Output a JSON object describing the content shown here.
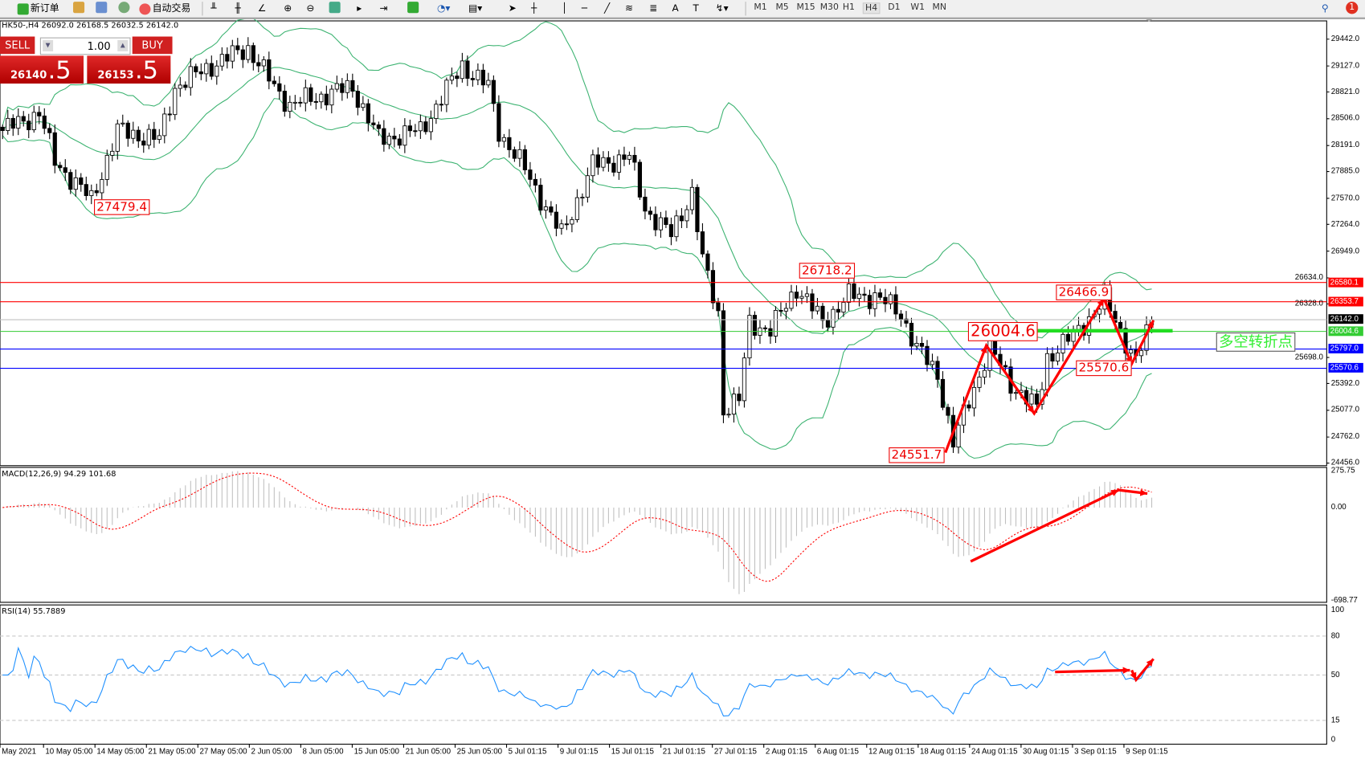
{
  "toolbar": {
    "new_order": "新订单",
    "auto_trading": "自动交易",
    "timeframes": [
      "M1",
      "M5",
      "M15",
      "M30",
      "H1",
      "H4",
      "D1",
      "W1",
      "MN"
    ],
    "active_timeframe": "H4",
    "notification_count": "1"
  },
  "chart_title": "HK50-,H4  26092.0 26168.5 26032.5 26142.0",
  "trade_panel": {
    "sell_label": "SELL",
    "buy_label": "BUY",
    "volume": "1.00",
    "sell_price_main": "26140",
    "sell_price_big": ".5",
    "buy_price_main": "26153",
    "buy_price_big": ".5"
  },
  "price_axis": [
    "29442.0",
    "29127.0",
    "28821.0",
    "28506.0",
    "28191.0",
    "27885.0",
    "27570.0",
    "27264.0",
    "26949.0",
    "26634.0",
    "26328.0",
    "25698.0",
    "25392.0",
    "25077.0",
    "24762.0",
    "24456.0"
  ],
  "price_range": [
    24456.0,
    29442.0
  ],
  "price_tags": [
    {
      "value": "26580.1",
      "color": "#ff0000"
    },
    {
      "value": "26353.7",
      "color": "#ff0000"
    },
    {
      "value": "26142.0",
      "color": "#000000"
    },
    {
      "value": "26004.6",
      "color": "#33cc33"
    },
    {
      "value": "25797.0",
      "color": "#0000ff"
    },
    {
      "value": "25570.6",
      "color": "#0000ff"
    }
  ],
  "annotations": {
    "low1": "27479.4",
    "high1": "26718.2",
    "high2": "26466.9",
    "pivot": "26004.6",
    "low2": "25570.6",
    "low3": "24551.7",
    "pivot_text": "多空转折点"
  },
  "macd": {
    "label": "MACD(12,26,9) 94.29 101.68",
    "axis": [
      "275.75",
      "0.00",
      "-698.77"
    ],
    "range": [
      -698.77,
      275.75
    ]
  },
  "rsi": {
    "label": "RSI(14) 55.7889",
    "axis": [
      "100",
      "80",
      "50",
      "15",
      "0"
    ]
  },
  "time_axis": [
    "May 2021",
    "10 May 05:00",
    "14 May 05:00",
    "21 May 05:00",
    "27 May 05:00",
    "2 Jun 05:00",
    "8 Jun 05:00",
    "15 Jun 05:00",
    "21 Jun 05:00",
    "25 Jun 05:00",
    "5 Jul 01:15",
    "9 Jul 01:15",
    "15 Jul 01:15",
    "21 Jul 01:15",
    "27 Jul 01:15",
    "2 Aug 01:15",
    "6 Aug 01:15",
    "12 Aug 01:15",
    "18 Aug 01:15",
    "24 Aug 01:15",
    "30 Aug 01:15",
    "3 Sep 01:15",
    "9 Sep 01:15"
  ],
  "chart_data": {
    "type": "candlestick",
    "symbol": "HK50-",
    "timeframe": "H4",
    "close_path": [
      [
        0,
        28367
      ],
      [
        7,
        28572
      ],
      [
        10,
        28009
      ],
      [
        17,
        27548
      ],
      [
        22,
        28367
      ],
      [
        30,
        28260
      ],
      [
        33,
        28879
      ],
      [
        40,
        29135
      ],
      [
        47,
        29340
      ],
      [
        52,
        28879
      ],
      [
        55,
        28674
      ],
      [
        67,
        28879
      ],
      [
        72,
        28264
      ],
      [
        80,
        28367
      ],
      [
        88,
        29135
      ],
      [
        93,
        28879
      ],
      [
        95,
        28367
      ],
      [
        100,
        27906
      ],
      [
        107,
        27138
      ],
      [
        113,
        27958
      ],
      [
        120,
        28060
      ],
      [
        123,
        27446
      ],
      [
        128,
        27138
      ],
      [
        132,
        27650
      ],
      [
        134,
        26831
      ],
      [
        137,
        26217
      ],
      [
        138,
        25090
      ],
      [
        141,
        25192
      ],
      [
        143,
        26114
      ],
      [
        147,
        26012
      ],
      [
        152,
        26524
      ],
      [
        157,
        26114
      ],
      [
        162,
        26421
      ],
      [
        167,
        26421
      ],
      [
        172,
        26217
      ],
      [
        175,
        25807
      ],
      [
        179,
        25500
      ],
      [
        182,
        24681
      ],
      [
        185,
        25192
      ],
      [
        189,
        25807
      ],
      [
        193,
        25397
      ],
      [
        198,
        25090
      ],
      [
        200,
        25704
      ],
      [
        205,
        25960
      ],
      [
        211,
        26371
      ],
      [
        217,
        25653
      ],
      [
        220,
        26114
      ]
    ]
  }
}
